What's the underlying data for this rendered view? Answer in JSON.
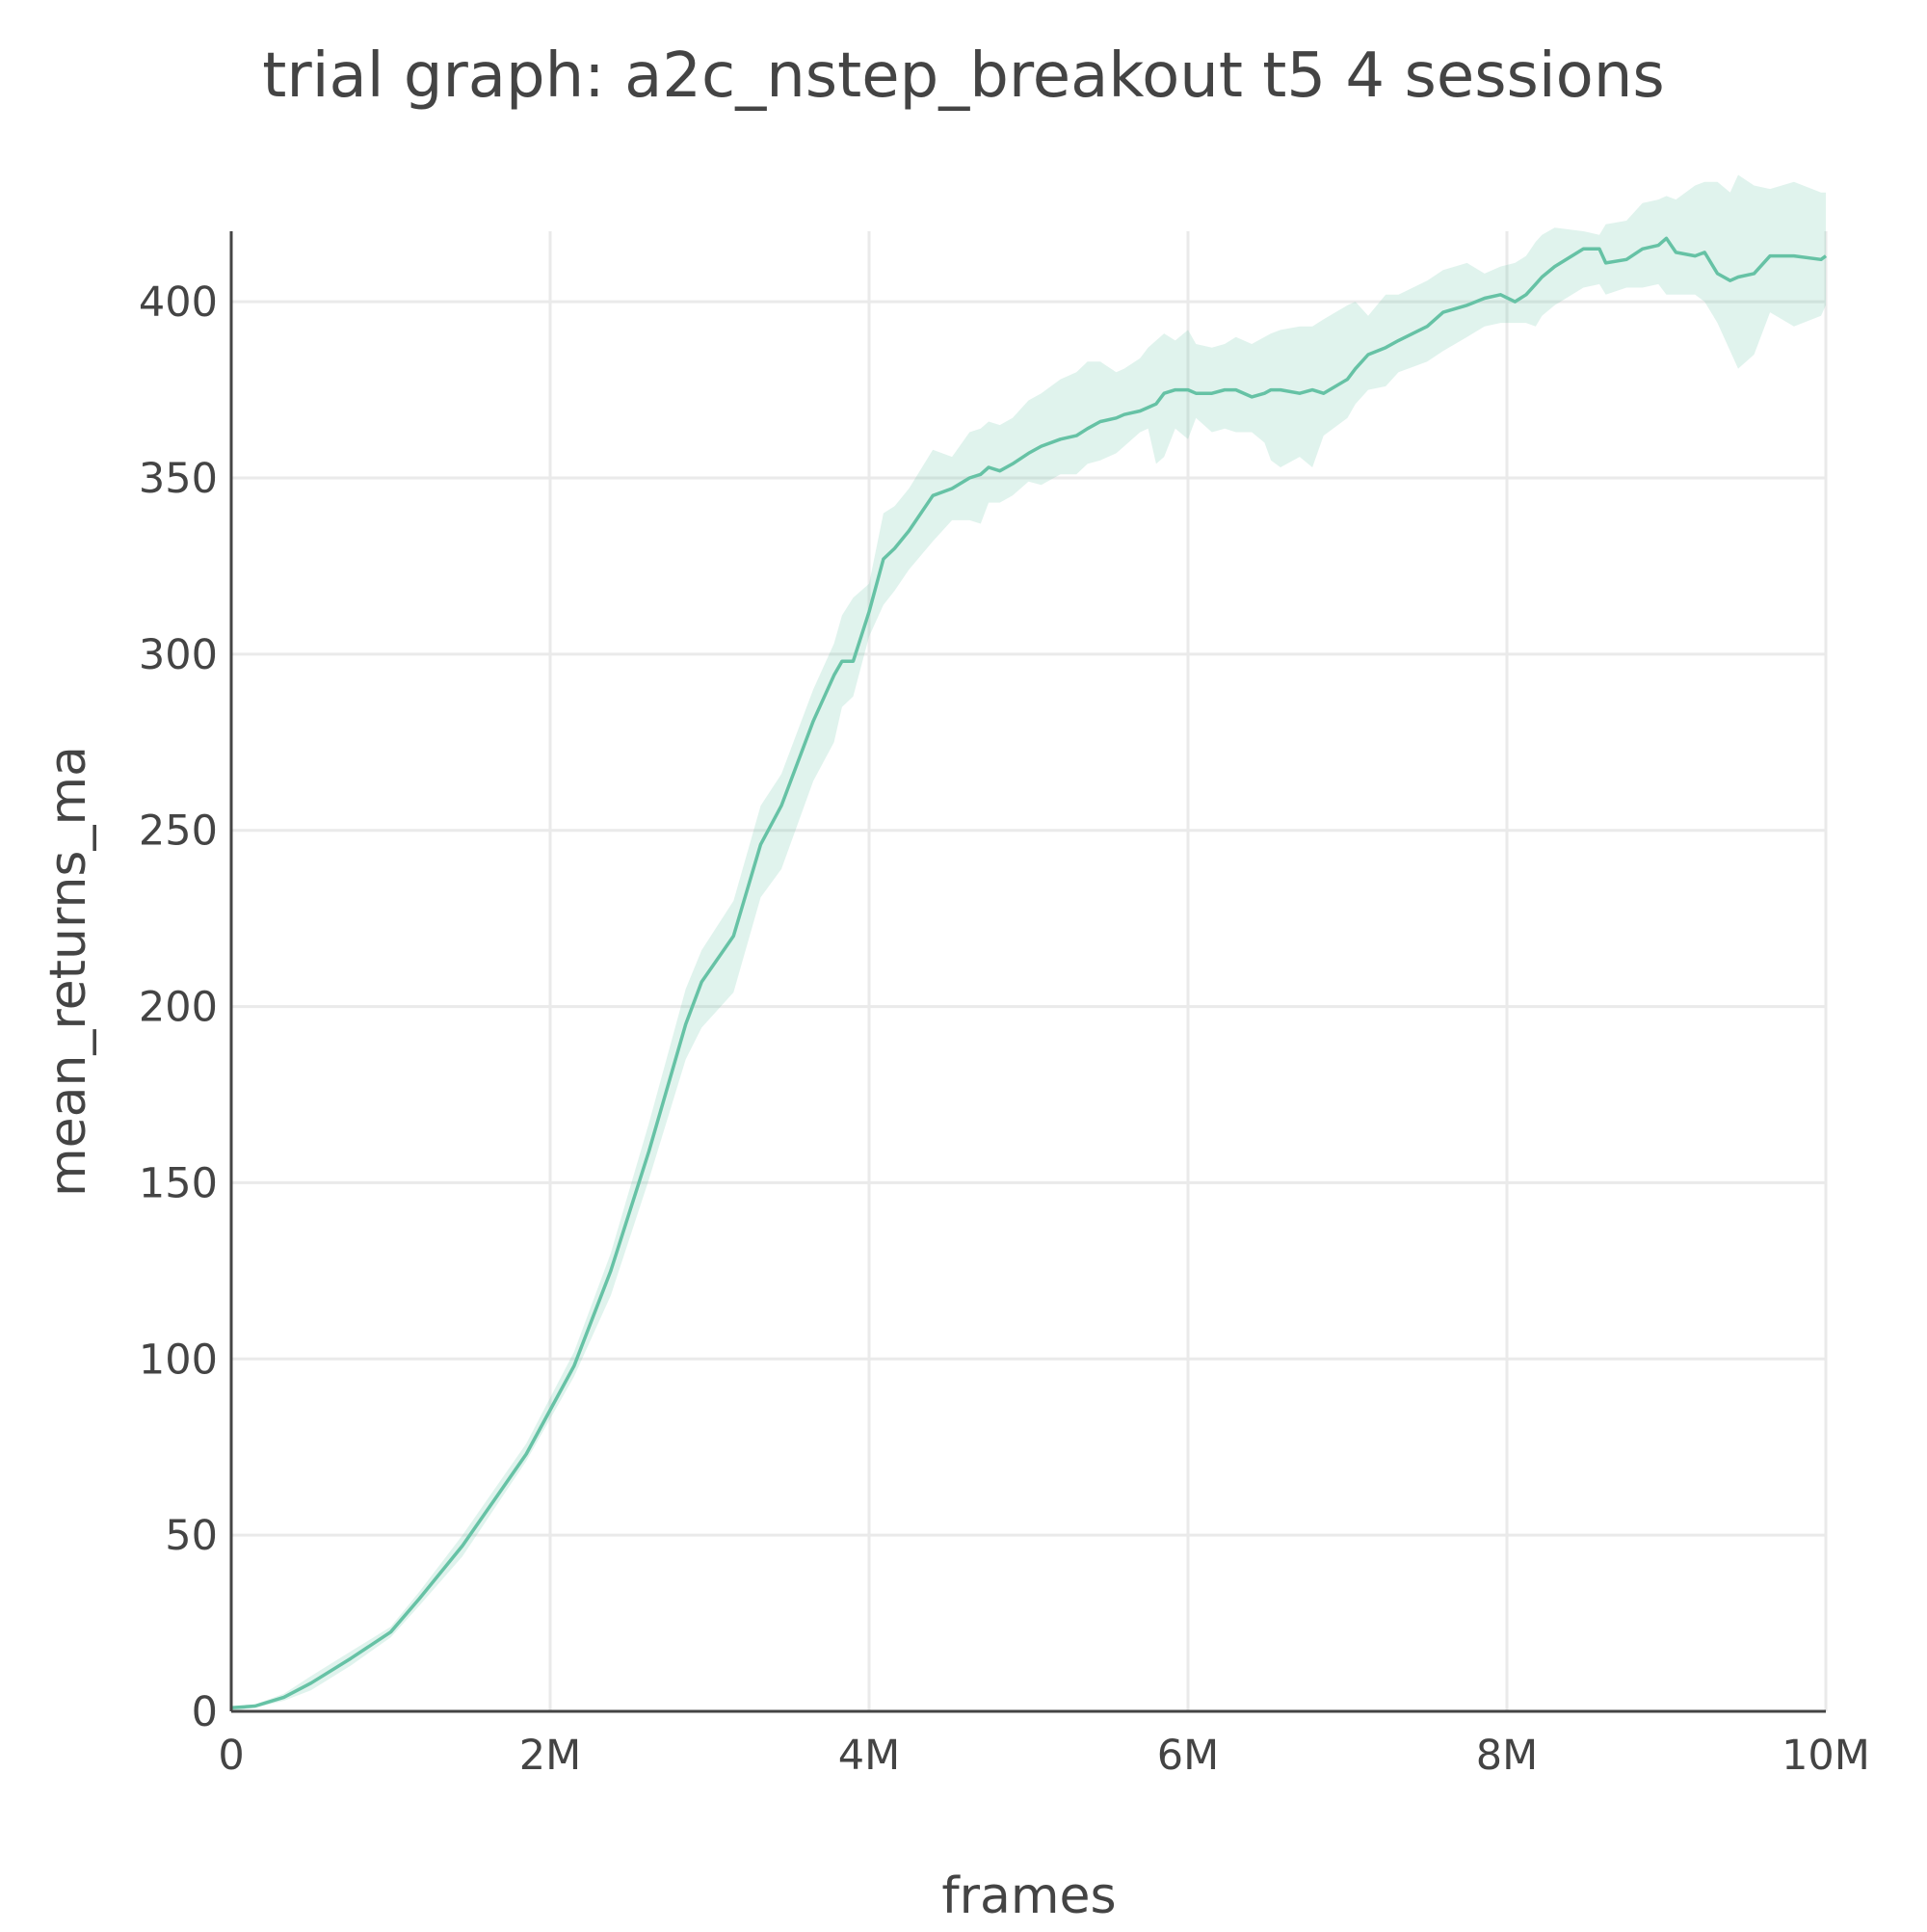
{
  "chart_data": {
    "type": "line",
    "title": "trial graph: a2c_nstep_breakout t5 4 sessions",
    "xlabel": "frames",
    "ylabel": "mean_returns_ma",
    "xlim": [
      0,
      10000000
    ],
    "ylim": [
      0,
      420
    ],
    "grid": true,
    "legend": "none",
    "colors": {
      "line": "#66c2a5",
      "band": "#66c2a5",
      "axis": "#444444",
      "grid": "#eaeaea",
      "text": "#444444"
    },
    "x_ticks": [
      {
        "value": 0,
        "label": "0"
      },
      {
        "value": 2000000,
        "label": "2M"
      },
      {
        "value": 4000000,
        "label": "4M"
      },
      {
        "value": 6000000,
        "label": "6M"
      },
      {
        "value": 8000000,
        "label": "8M"
      },
      {
        "value": 10000000,
        "label": "10M"
      }
    ],
    "y_ticks": [
      {
        "value": 0,
        "label": "0"
      },
      {
        "value": 50,
        "label": "50"
      },
      {
        "value": 100,
        "label": "100"
      },
      {
        "value": 150,
        "label": "150"
      },
      {
        "value": 200,
        "label": "200"
      },
      {
        "value": 250,
        "label": "250"
      },
      {
        "value": 300,
        "label": "300"
      },
      {
        "value": 350,
        "label": "350"
      },
      {
        "value": 400,
        "label": "400"
      }
    ],
    "series": [
      {
        "x": [
          0,
          150000,
          330000,
          500000,
          750000,
          1000000,
          1180000,
          1450000,
          1850000,
          2150000,
          2380000,
          2620000,
          2850000,
          2950000,
          3150000,
          3320000,
          3450000,
          3650000,
          3780000,
          3830000,
          3900000,
          4000000,
          4090000,
          4160000,
          4250000,
          4400000,
          4520000,
          4630000,
          4700000,
          4750000,
          4820000,
          4900000,
          5000000,
          5080000,
          5200000,
          5300000,
          5370000,
          5450000,
          5550000,
          5600000,
          5700000,
          5750000,
          5800000,
          5850000,
          5920000,
          6000000,
          6050000,
          6150000,
          6230000,
          6300000,
          6400000,
          6480000,
          6520000,
          6580000,
          6700000,
          6780000,
          6850000,
          7000000,
          7050000,
          7130000,
          7240000,
          7320000,
          7500000,
          7600000,
          7750000,
          7860000,
          7960000,
          8050000,
          8120000,
          8180000,
          8220000,
          8300000,
          8480000,
          8580000,
          8620000,
          8750000,
          8850000,
          8950000,
          9000000,
          9060000,
          9180000,
          9240000,
          9320000,
          9400000,
          9450000,
          9550000,
          9650000,
          9800000,
          9970000,
          10000000
        ],
        "mean": [
          1,
          1.5,
          4,
          8,
          15,
          22.5,
          32,
          47,
          73,
          98,
          125,
          159,
          195,
          207,
          220,
          246,
          257,
          281,
          294,
          298,
          298,
          312,
          327,
          330,
          335,
          345,
          347,
          350,
          351,
          353,
          352,
          354,
          357,
          359,
          361,
          362,
          364,
          366,
          367,
          368,
          369,
          370,
          371,
          374,
          375,
          375,
          374,
          374,
          375,
          375,
          373,
          374,
          375,
          375,
          374,
          375,
          374,
          378,
          381,
          385,
          387,
          389,
          393,
          397,
          399,
          401,
          402,
          400,
          402,
          405,
          407,
          410,
          415,
          415,
          411,
          412,
          415,
          416,
          418,
          414,
          413,
          414,
          408,
          406,
          407,
          408,
          413,
          413,
          412,
          413
        ],
        "upper": [
          1,
          2,
          5,
          10,
          17,
          24,
          34,
          50,
          76,
          102,
          130,
          167,
          205,
          216,
          230,
          257,
          266,
          290,
          303,
          311,
          316,
          320,
          340,
          342,
          347,
          358,
          356,
          363,
          364,
          366,
          365,
          367,
          372,
          374,
          378,
          380,
          383,
          383,
          380,
          381,
          384,
          387,
          389,
          391,
          389,
          392,
          388,
          387,
          388,
          390,
          388,
          390,
          391,
          392,
          393,
          393,
          395,
          399,
          400,
          396,
          402,
          402,
          406,
          409,
          411,
          408,
          410,
          411,
          413,
          417,
          419,
          421,
          420,
          419,
          422,
          423,
          428,
          429,
          430,
          429,
          433,
          434,
          434,
          431,
          436,
          433,
          432,
          434,
          431,
          431
        ],
        "lower": [
          0,
          1,
          3,
          6,
          13,
          21,
          30,
          44,
          71,
          95,
          118,
          151,
          185,
          194,
          204,
          231,
          239,
          264,
          275,
          285,
          288,
          305,
          314,
          318,
          324,
          332,
          338,
          338,
          337,
          343,
          343,
          345,
          349,
          348,
          351,
          351,
          354,
          355,
          357,
          359,
          363,
          364,
          354,
          356,
          364,
          361,
          367,
          363,
          364,
          363,
          363,
          360,
          355,
          353,
          356,
          353,
          362,
          367,
          371,
          375,
          376,
          380,
          383,
          386,
          390,
          393,
          394,
          394,
          394,
          393,
          396,
          399,
          404,
          405,
          402,
          404,
          404,
          405,
          402,
          402,
          402,
          400,
          394,
          386,
          381,
          385,
          397,
          393,
          396,
          399
        ]
      }
    ]
  }
}
